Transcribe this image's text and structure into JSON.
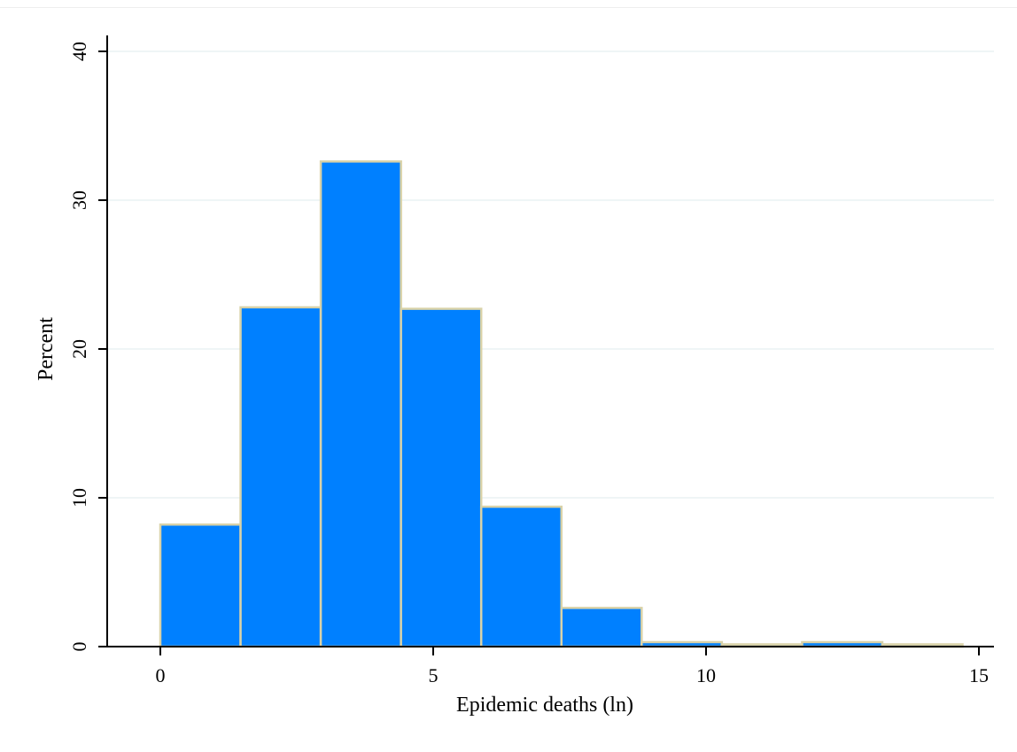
{
  "chart_data": {
    "type": "bar",
    "subtype": "histogram",
    "xlabel": "Epidemic deaths (ln)",
    "ylabel": "Percent",
    "xlim": [
      0,
      15
    ],
    "ylim": [
      0,
      40
    ],
    "xticks": [
      0,
      5,
      10,
      15
    ],
    "yticks": [
      0,
      10,
      20,
      30,
      40
    ],
    "grid": true,
    "colors": {
      "bar_fill": "#0080ff",
      "bar_edge": "#d9d2a8",
      "grid": "#eaf2f3",
      "axis": "#000000"
    },
    "bins": [
      {
        "x0": 0.0,
        "x1": 1.47,
        "value": 8.2
      },
      {
        "x0": 1.47,
        "x1": 2.94,
        "value": 22.8
      },
      {
        "x0": 2.94,
        "x1": 4.41,
        "value": 32.6
      },
      {
        "x0": 4.41,
        "x1": 5.88,
        "value": 22.7
      },
      {
        "x0": 5.88,
        "x1": 7.35,
        "value": 9.4
      },
      {
        "x0": 7.35,
        "x1": 8.82,
        "value": 2.6
      },
      {
        "x0": 8.82,
        "x1": 10.29,
        "value": 0.3
      },
      {
        "x0": 10.29,
        "x1": 11.76,
        "value": 0.15
      },
      {
        "x0": 11.76,
        "x1": 13.23,
        "value": 0.3
      },
      {
        "x0": 13.23,
        "x1": 14.7,
        "value": 0.15
      }
    ]
  }
}
